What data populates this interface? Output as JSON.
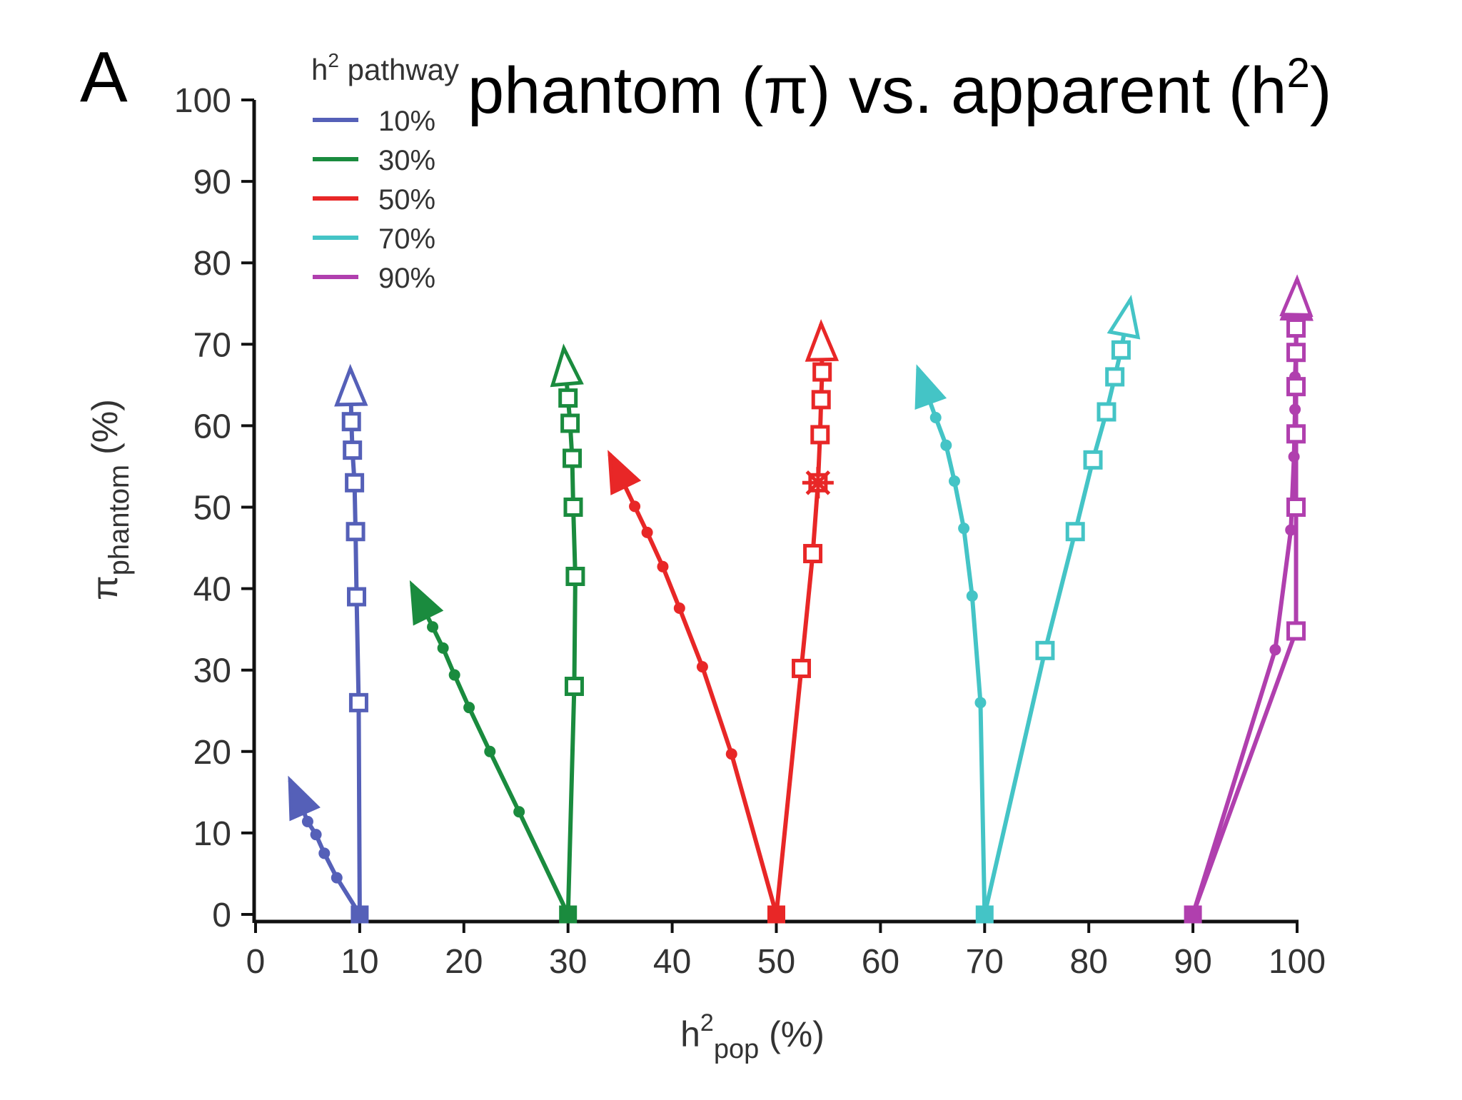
{
  "panel_letter": "A",
  "chart_data": {
    "type": "line",
    "title_parts": {
      "pre": "phantom (π) vs. apparent (h",
      "sup": "2",
      "post": ")"
    },
    "xlabel_parts": {
      "base": "h",
      "sup": "2",
      "sub": "pop",
      "post": " (%)"
    },
    "ylabel_parts": {
      "base": "π",
      "sub": "phantom",
      "post": " (%)"
    },
    "xlim": [
      0,
      100
    ],
    "ylim": [
      0,
      100
    ],
    "xticks": [
      0,
      10,
      20,
      30,
      40,
      50,
      60,
      70,
      80,
      90,
      100
    ],
    "yticks": [
      0,
      10,
      20,
      30,
      40,
      50,
      60,
      70,
      80,
      90,
      100
    ],
    "legend_title_parts": {
      "base": "h",
      "sup": "2",
      "post": " pathway"
    },
    "legend_position": "top-left",
    "series": [
      {
        "name": "10%",
        "color": "#5560b8",
        "left": [
          [
            10,
            0
          ],
          [
            7.8,
            4.5
          ],
          [
            6.6,
            7.5
          ],
          [
            5.8,
            9.8
          ],
          [
            5.0,
            11.4
          ],
          [
            4.5,
            13
          ],
          [
            3.3,
            16.5
          ]
        ],
        "right": [
          [
            10,
            0
          ],
          [
            9.9,
            26
          ],
          [
            9.7,
            39
          ],
          [
            9.6,
            47
          ],
          [
            9.5,
            53
          ],
          [
            9.3,
            57
          ],
          [
            9.2,
            60.5
          ],
          [
            9.1,
            67
          ]
        ]
      },
      {
        "name": "30%",
        "color": "#1a8b3e",
        "left": [
          [
            30,
            0
          ],
          [
            25.3,
            12.6
          ],
          [
            22.5,
            20
          ],
          [
            20.5,
            25.4
          ],
          [
            19.1,
            29.4
          ],
          [
            18.0,
            32.7
          ],
          [
            17.0,
            35.3
          ],
          [
            15.0,
            40.5
          ]
        ],
        "right": [
          [
            30,
            0
          ],
          [
            30.6,
            28
          ],
          [
            30.7,
            41.5
          ],
          [
            30.5,
            50
          ],
          [
            30.4,
            56
          ],
          [
            30.2,
            60.3
          ],
          [
            30.0,
            63.4
          ],
          [
            29.6,
            69.5
          ]
        ]
      },
      {
        "name": "50%",
        "color": "#e82727",
        "left": [
          [
            50,
            0
          ],
          [
            45.7,
            19.7
          ],
          [
            42.9,
            30.4
          ],
          [
            40.7,
            37.6
          ],
          [
            39.1,
            42.7
          ],
          [
            37.6,
            46.9
          ],
          [
            36.4,
            50.1
          ],
          [
            34.0,
            56.5
          ]
        ],
        "right": [
          [
            50,
            0
          ],
          [
            52.4,
            30.2
          ],
          [
            53.5,
            44.3
          ],
          [
            54.0,
            53
          ],
          [
            54.2,
            58.9
          ],
          [
            54.3,
            63.2
          ],
          [
            54.4,
            66.6
          ],
          [
            54.3,
            72.5
          ]
        ]
      },
      {
        "name": "70%",
        "color": "#44c4c6",
        "left": [
          [
            70,
            0
          ],
          [
            69.6,
            26
          ],
          [
            68.8,
            39.1
          ],
          [
            68.0,
            47.4
          ],
          [
            67.1,
            53.2
          ],
          [
            66.3,
            57.6
          ],
          [
            65.3,
            61
          ],
          [
            63.6,
            67
          ]
        ],
        "right": [
          [
            70,
            0
          ],
          [
            75.8,
            32.4
          ],
          [
            78.7,
            47
          ],
          [
            80.4,
            55.8
          ],
          [
            81.7,
            61.7
          ],
          [
            82.5,
            66
          ],
          [
            83.1,
            69.3
          ],
          [
            84.0,
            75.5
          ]
        ]
      },
      {
        "name": "90%",
        "color": "#b03fae",
        "left": [
          [
            90,
            0
          ],
          [
            97.9,
            32.5
          ],
          [
            99.4,
            47.2
          ],
          [
            99.7,
            56.2
          ],
          [
            99.8,
            62
          ],
          [
            99.8,
            66
          ],
          [
            99.9,
            69
          ],
          [
            100,
            77.5
          ]
        ],
        "right": [
          [
            90,
            0
          ],
          [
            99.9,
            34.8
          ],
          [
            99.9,
            50
          ],
          [
            99.9,
            59
          ],
          [
            99.9,
            64.8
          ],
          [
            99.9,
            69
          ],
          [
            99.9,
            72
          ],
          [
            100,
            78
          ]
        ]
      }
    ],
    "annotations": [
      {
        "type": "asterisk",
        "series": "50%",
        "x": 54.0,
        "y": 53
      }
    ]
  }
}
